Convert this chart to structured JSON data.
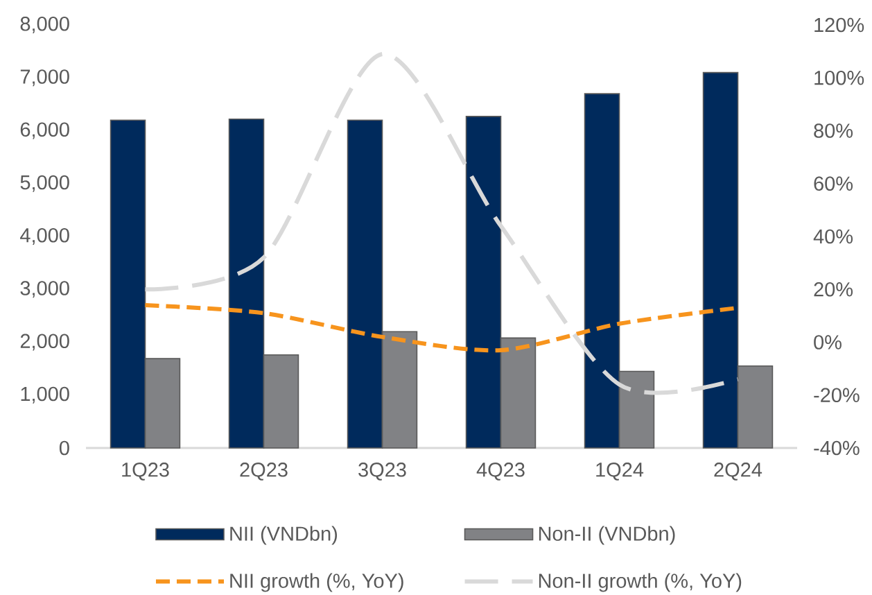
{
  "chart_data": {
    "type": "bar",
    "categories": [
      "1Q23",
      "2Q23",
      "3Q23",
      "4Q23",
      "1Q24",
      "2Q24"
    ],
    "series": [
      {
        "name": "NII (VNDbn)",
        "color": "#002a5c",
        "values": [
          6200,
          6220,
          6200,
          6270,
          6700,
          7100
        ]
      },
      {
        "name": "Non-II (VNDbn)",
        "color": "#818285",
        "values": [
          1690,
          1760,
          2200,
          2080,
          1450,
          1550
        ]
      },
      {
        "name": "NII growth (%, YoY)",
        "type": "line",
        "axis": "y2",
        "color": "#f7941d",
        "line_style": "dashed",
        "values": [
          14,
          11,
          2,
          -3,
          7,
          13
        ]
      },
      {
        "name": "Non-II growth (%, YoY)",
        "type": "line",
        "axis": "y2",
        "color": "#d9d9d9",
        "line_style": "dashed",
        "values": [
          20,
          32,
          109,
          44,
          -16,
          -14
        ]
      }
    ],
    "ylim": [
      0,
      8000
    ],
    "yticks": [
      0,
      {
        "value": 1000,
        "label": "1,000"
      },
      {
        "value": 2000,
        "label": "2,000"
      },
      {
        "value": 3000,
        "label": "3,000"
      },
      {
        "value": 4000,
        "label": "4,000"
      },
      {
        "value": 5000,
        "label": "5,000"
      },
      {
        "value": 6000,
        "label": "6,000"
      },
      {
        "value": 7000,
        "label": "7,000"
      },
      {
        "value": 8000,
        "label": "8,000"
      }
    ],
    "y2lim": [
      -40,
      120
    ],
    "y2ticks": [
      {
        "value": -40,
        "label": "-40%"
      },
      {
        "value": -20,
        "label": "-20%"
      },
      {
        "value": 0,
        "label": "0%"
      },
      {
        "value": 20,
        "label": "20%"
      },
      {
        "value": 40,
        "label": "40%"
      },
      {
        "value": 60,
        "label": "60%"
      },
      {
        "value": 80,
        "label": "80%"
      },
      {
        "value": 100,
        "label": "100%"
      },
      {
        "value": 120,
        "label": "120%"
      }
    ],
    "legend": "bottom"
  }
}
